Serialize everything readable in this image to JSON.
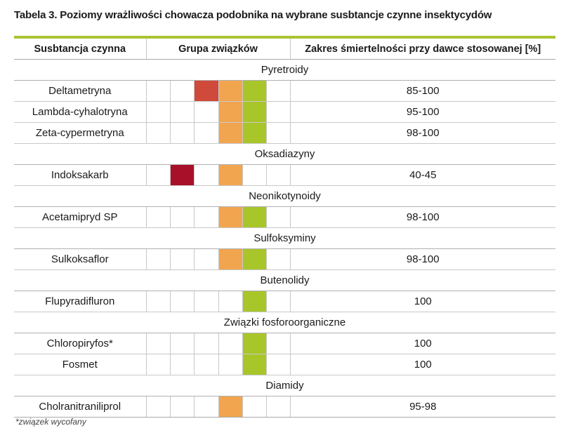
{
  "title": "Tabela 3. Poziomy wrażliwości chowacza podobnika na wybrane susbtancje czynne insektycydów",
  "colors": {
    "accent_bar": "#a8c431",
    "c1": "#a8102a",
    "c2": "#cf4a3a",
    "c3": "#f2a54f",
    "c4": "#a8c62a"
  },
  "headers": {
    "substance": "Susbtancja czynna",
    "group": "Grupa związków",
    "range": "Zakres śmiertelności przy dawce stosowanej [%]"
  },
  "groups": [
    {
      "name": "Pyretroidy",
      "rows": [
        {
          "substance": "Deltametryna",
          "range": "85-100",
          "boxes": [
            0,
            0,
            2,
            3,
            4,
            0
          ]
        },
        {
          "substance": "Lambda-cyhalotryna",
          "range": "95-100",
          "boxes": [
            0,
            0,
            0,
            3,
            4,
            0
          ]
        },
        {
          "substance": "Zeta-cypermetryna",
          "range": "98-100",
          "boxes": [
            0,
            0,
            0,
            3,
            4,
            0
          ]
        }
      ]
    },
    {
      "name": "Oksadiazyny",
      "rows": [
        {
          "substance": "Indoksakarb",
          "range": "40-45",
          "boxes": [
            0,
            1,
            0,
            3,
            0,
            0
          ]
        }
      ]
    },
    {
      "name": "Neonikotynoidy",
      "rows": [
        {
          "substance": "Acetamipryd SP",
          "range": "98-100",
          "boxes": [
            0,
            0,
            0,
            3,
            4,
            0
          ]
        }
      ]
    },
    {
      "name": "Sulfoksyminy",
      "rows": [
        {
          "substance": "Sulkoksaflor",
          "range": "98-100",
          "boxes": [
            0,
            0,
            0,
            3,
            4,
            0
          ]
        }
      ]
    },
    {
      "name": "Butenolidy",
      "rows": [
        {
          "substance": "Flupyradifluron",
          "range": "100",
          "boxes": [
            0,
            0,
            0,
            0,
            4,
            0
          ]
        }
      ]
    },
    {
      "name": "Związki fosforoorganiczne",
      "rows": [
        {
          "substance": "Chloropiryfos*",
          "range": "100",
          "boxes": [
            0,
            0,
            0,
            0,
            4,
            0
          ]
        },
        {
          "substance": "Fosmet",
          "range": "100",
          "boxes": [
            0,
            0,
            0,
            0,
            4,
            0
          ]
        }
      ]
    },
    {
      "name": "Diamidy",
      "rows": [
        {
          "substance": "Cholranitraniliprol",
          "range": "95-98",
          "boxes": [
            0,
            0,
            0,
            3,
            0,
            0
          ]
        }
      ]
    }
  ],
  "footnote": "*związek wycofany"
}
